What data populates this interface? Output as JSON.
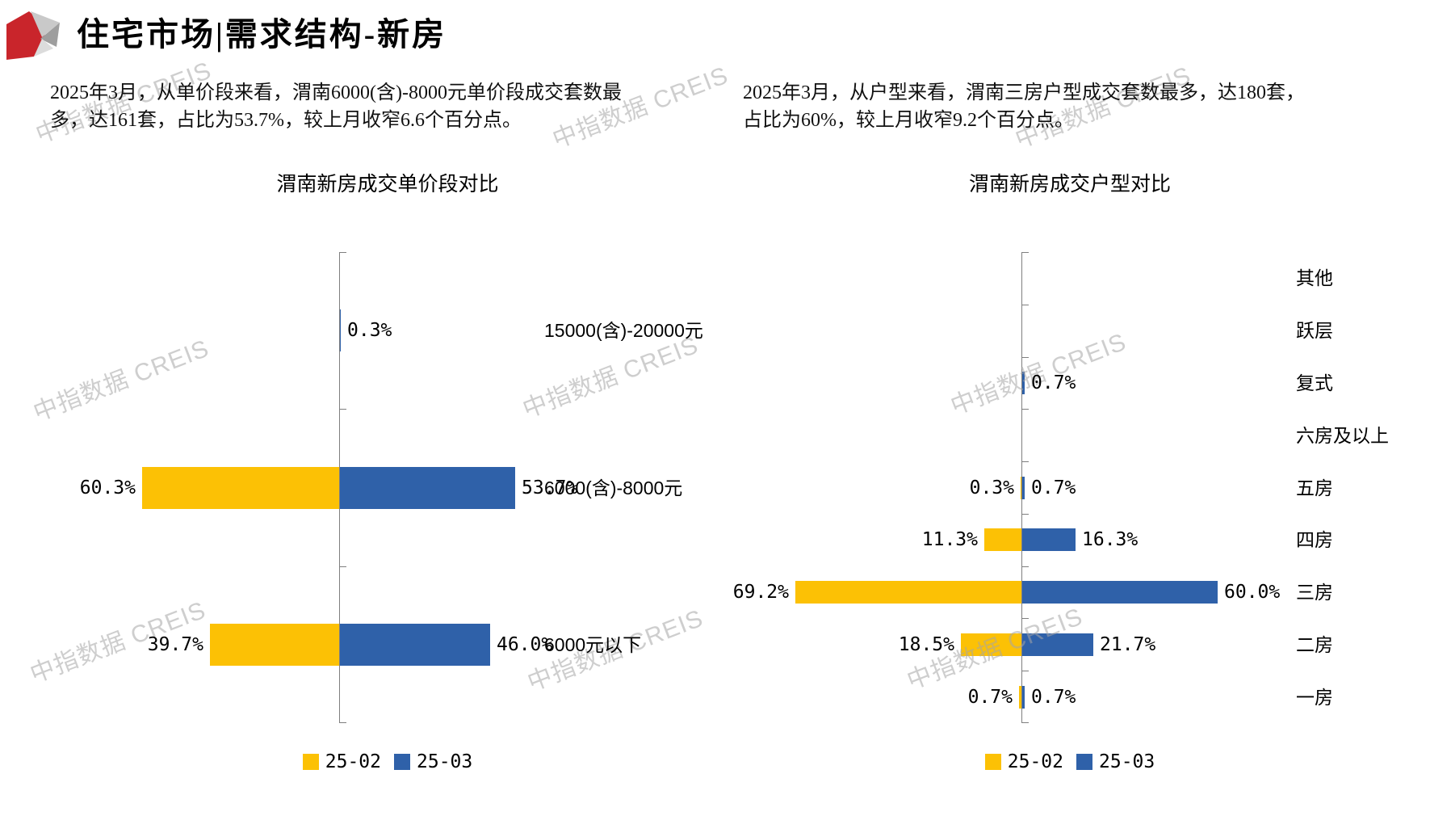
{
  "header": {
    "title": "住宅市场|需求结构-新房"
  },
  "watermark": {
    "text": "中指数据 CREIS"
  },
  "left_section": {
    "summary": "2025年3月，从单价段来看，渭南6000(含)-8000元单价段成交套数最多，达161套，占比为53.7%，较上月收窄6.6个百分点。",
    "chart_title": "渭南新房成交单价段对比"
  },
  "right_section": {
    "summary": "2025年3月，从户型来看，渭南三房户型成交套数最多，达180套，占比为60%，较上月收窄9.2个百分点。",
    "chart_title": "渭南新房成交户型对比"
  },
  "legend": {
    "items": [
      {
        "label": "25-02",
        "color": "#FCC105"
      },
      {
        "label": "25-03",
        "color": "#2F61A9"
      }
    ]
  },
  "colors": {
    "series_2502": "#FCC105",
    "series_2503": "#2F61A9",
    "axis": "#7f7f7f",
    "watermark": "#a5a5a5",
    "logo_red": "#C9252B"
  },
  "chart_data": [
    {
      "type": "bar",
      "title": "渭南新房成交单价段对比",
      "orientation": "horizontal-tornado",
      "unit": "%",
      "legend_position": "bottom",
      "categories": [
        "15000(含)-20000元",
        "6000(含)-8000元",
        "6000元以下"
      ],
      "series": [
        {
          "name": "25-02",
          "side": "left",
          "color": "#FCC105",
          "values": [
            null,
            60.3,
            39.7
          ]
        },
        {
          "name": "25-03",
          "side": "right",
          "color": "#2F61A9",
          "values": [
            0.3,
            53.7,
            46.0
          ]
        }
      ]
    },
    {
      "type": "bar",
      "title": "渭南新房成交户型对比",
      "orientation": "horizontal-tornado",
      "unit": "%",
      "legend_position": "bottom",
      "categories": [
        "其他",
        "跃层",
        "复式",
        "六房及以上",
        "五房",
        "四房",
        "三房",
        "二房",
        "一房"
      ],
      "series": [
        {
          "name": "25-02",
          "side": "left",
          "color": "#FCC105",
          "values": [
            null,
            null,
            null,
            null,
            0.3,
            11.3,
            69.2,
            18.5,
            0.7
          ]
        },
        {
          "name": "25-03",
          "side": "right",
          "color": "#2F61A9",
          "values": [
            null,
            null,
            0.7,
            null,
            0.7,
            16.3,
            60.0,
            21.7,
            0.7
          ]
        }
      ]
    }
  ]
}
